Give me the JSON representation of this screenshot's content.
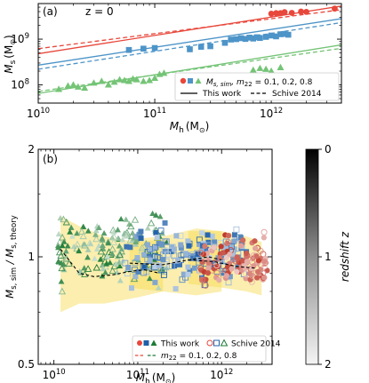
{
  "chart_data": [
    {
      "type": "scatter",
      "panel_label": "(a)",
      "annotation": "z = 0",
      "xlabel_main": "M",
      "xlabel_sub": "h",
      "xlabel_unit": "(M",
      "xlabel_unit_close": ")",
      "ylabel_main": "M",
      "ylabel_sub": "s",
      "ylabel_unit": "(M",
      "ylabel_unit_close": ")",
      "xscale": "log",
      "yscale": "log",
      "xlim": [
        10000000000,
        4000000000000
      ],
      "ylim": [
        40000000,
        6000000000
      ],
      "x_ticks": [
        {
          "value": 10000000000,
          "base": "10",
          "exp": "10"
        },
        {
          "value": 100000000000,
          "base": "10",
          "exp": "11"
        },
        {
          "value": 1000000000000,
          "base": "10",
          "exp": "12"
        }
      ],
      "y_ticks": [
        {
          "value": 100000000,
          "base": "10",
          "exp": "8"
        },
        {
          "value": 1000000000,
          "base": "10",
          "exp": "9"
        }
      ],
      "legend": {
        "placement": "bottom-right",
        "markers_label": "M",
        "markers_label_sub": "s, sim",
        "markers_label_rest": ", m",
        "markers_label_sub2": "22",
        "markers_label_end": " = 0.1, 0.2, 0.8",
        "solid_label": "This work",
        "dashed_label": "Schive 2014"
      },
      "series": [
        {
          "name": "m22 = 0.1",
          "color": "#74c476",
          "marker": "triangle",
          "points": [
            [
              15000000000,
              80000000
            ],
            [
              18000000000,
              95000000
            ],
            [
              20000000000,
              100000000
            ],
            [
              22000000000,
              90000000
            ],
            [
              25000000000,
              85000000
            ],
            [
              30000000000,
              110000000
            ],
            [
              35000000000,
              120000000
            ],
            [
              40000000000,
              100000000
            ],
            [
              45000000000,
              115000000
            ],
            [
              50000000000,
              130000000
            ],
            [
              55000000000,
              125000000
            ],
            [
              60000000000,
              120000000
            ],
            [
              65000000000,
              135000000
            ],
            [
              70000000000,
              130000000
            ],
            [
              80000000000,
              120000000
            ],
            [
              90000000000,
              125000000
            ],
            [
              100000000000,
              140000000
            ],
            [
              110000000000,
              170000000
            ],
            [
              120000000000,
              180000000
            ],
            [
              200000000000,
              110000000
            ],
            [
              220000000000,
              120000000
            ],
            [
              350000000000,
              130000000
            ],
            [
              700000000000,
              210000000
            ],
            [
              800000000000,
              230000000
            ],
            [
              900000000000,
              220000000
            ],
            [
              1000000000000,
              200000000
            ],
            [
              1200000000000,
              240000000
            ]
          ],
          "fit_solid": [
            [
              10000000000,
              65000000
            ],
            [
              4000000000000,
              750000000
            ]
          ],
          "fit_dashed": [
            [
              10000000000,
              72000000
            ],
            [
              4000000000000,
              630000000
            ]
          ]
        },
        {
          "name": "m22 = 0.2",
          "color": "#4d94c8",
          "marker": "square",
          "points": [
            [
              60000000000,
              580000000
            ],
            [
              80000000000,
              620000000
            ],
            [
              100000000000,
              640000000
            ],
            [
              200000000000,
              600000000
            ],
            [
              250000000000,
              680000000
            ],
            [
              300000000000,
              700000000
            ],
            [
              400000000000,
              830000000
            ],
            [
              450000000000,
              980000000
            ],
            [
              500000000000,
              1000000000
            ],
            [
              550000000000,
              1050000000
            ],
            [
              600000000000,
              1010000000
            ],
            [
              650000000000,
              1080000000
            ],
            [
              700000000000,
              1030000000
            ],
            [
              750000000000,
              1100000000
            ],
            [
              800000000000,
              1060000000
            ],
            [
              900000000000,
              1120000000
            ],
            [
              1000000000000,
              1200000000
            ],
            [
              1100000000000,
              1150000000
            ],
            [
              1200000000000,
              1280000000
            ],
            [
              1300000000000,
              1300000000
            ],
            [
              1400000000000,
              1250000000
            ]
          ],
          "fit_solid": [
            [
              10000000000,
              270000000
            ],
            [
              4000000000000,
              2800000000
            ]
          ],
          "fit_dashed": [
            [
              10000000000,
              220000000
            ],
            [
              4000000000000,
              2300000000
            ]
          ]
        },
        {
          "name": "m22 = 0.8",
          "color": "#e8473b",
          "marker": "circle",
          "points": [
            [
              1000000000000,
              3600000000
            ],
            [
              1100000000000,
              3700000000
            ],
            [
              1200000000000,
              3700000000
            ],
            [
              1300000000000,
              3900000000
            ],
            [
              1500000000000,
              3750000000
            ],
            [
              1800000000000,
              4000000000
            ],
            [
              2000000000000,
              3950000000
            ],
            [
              3500000000000,
              4650000000
            ]
          ],
          "fit_solid": [
            [
              10000000000,
              480000000
            ],
            [
              4000000000000,
              5300000000
            ]
          ],
          "fit_dashed": [
            [
              10000000000,
              620000000
            ],
            [
              4000000000000,
              4400000000
            ]
          ]
        }
      ]
    },
    {
      "type": "scatter",
      "panel_label": "(b)",
      "xlabel_main": "M",
      "xlabel_sub": "h",
      "xlabel_unit": "(M",
      "xlabel_unit_close": ")",
      "ylabel_main": "M",
      "ylabel_sub": "s, sim",
      "ylabel_mid": " / M",
      "ylabel_sub2": "s, theory",
      "xscale": "log",
      "yscale": "log",
      "xlim": [
        6500000000,
        4000000000000
      ],
      "ylim": [
        0.5,
        2
      ],
      "x_ticks": [
        {
          "value": 10000000000,
          "base": "10",
          "exp": "10"
        },
        {
          "value": 100000000000,
          "base": "10",
          "exp": "11"
        },
        {
          "value": 1000000000000,
          "base": "10",
          "exp": "12"
        }
      ],
      "y_ticks": [
        {
          "value": 0.5,
          "label": "0.5"
        },
        {
          "value": 1,
          "label": "1"
        },
        {
          "value": 2,
          "label": "2"
        }
      ],
      "colorbar": {
        "label": "redshift z",
        "range": [
          0,
          2
        ],
        "ticks": [
          "0",
          "1",
          "2"
        ]
      },
      "legend": {
        "placement": "bottom-center",
        "this_work": "This work",
        "schive": "Schive 2014",
        "m22_label": "m",
        "m22_sub": "22",
        "m22_rest": " = 0.1, 0.2, 0.8"
      },
      "series": [
        {
          "name": "m22 = 0.1",
          "color": "#1e7b35",
          "band": [
            [
              12000000000,
              0.7,
              1.3
            ],
            [
              20000000000,
              0.74,
              1.22
            ],
            [
              40000000000,
              0.74,
              1.14
            ],
            [
              100000000000,
              0.77,
              1.1
            ],
            [
              200000000000,
              0.8,
              1.12
            ]
          ],
          "median": [
            [
              12000000000,
              1.05
            ],
            [
              20000000000,
              0.9
            ],
            [
              30000000000,
              0.88
            ],
            [
              50000000000,
              0.89
            ],
            [
              80000000000,
              0.91
            ],
            [
              120000000000,
              0.92
            ],
            [
              180000000000,
              0.9
            ]
          ]
        },
        {
          "name": "m22 = 0.2",
          "color": "#1f5fa8",
          "band": [
            [
              80000000000,
              0.82,
              1.12
            ],
            [
              200000000000,
              0.8,
              1.14
            ],
            [
              500000000000,
              0.78,
              1.2
            ],
            [
              1000000000000,
              0.8,
              1.18
            ]
          ],
          "median": [
            [
              80000000000,
              0.96
            ],
            [
              200000000000,
              0.95
            ],
            [
              400000000000,
              0.98
            ],
            [
              700000000000,
              1.0
            ],
            [
              1000000000000,
              0.98
            ]
          ]
        },
        {
          "name": "m22 = 0.8",
          "color": "#c0392b",
          "band": [
            [
              400000000000,
              0.84,
              1.18
            ],
            [
              1000000000000,
              0.82,
              1.18
            ],
            [
              2000000000000,
              0.8,
              1.14
            ],
            [
              3000000000000,
              0.78,
              1.1
            ]
          ],
          "median": [
            [
              400000000000,
              0.98
            ],
            [
              800000000000,
              0.97
            ],
            [
              1500000000000,
              0.94
            ],
            [
              2500000000000,
              0.93
            ]
          ]
        }
      ]
    }
  ]
}
